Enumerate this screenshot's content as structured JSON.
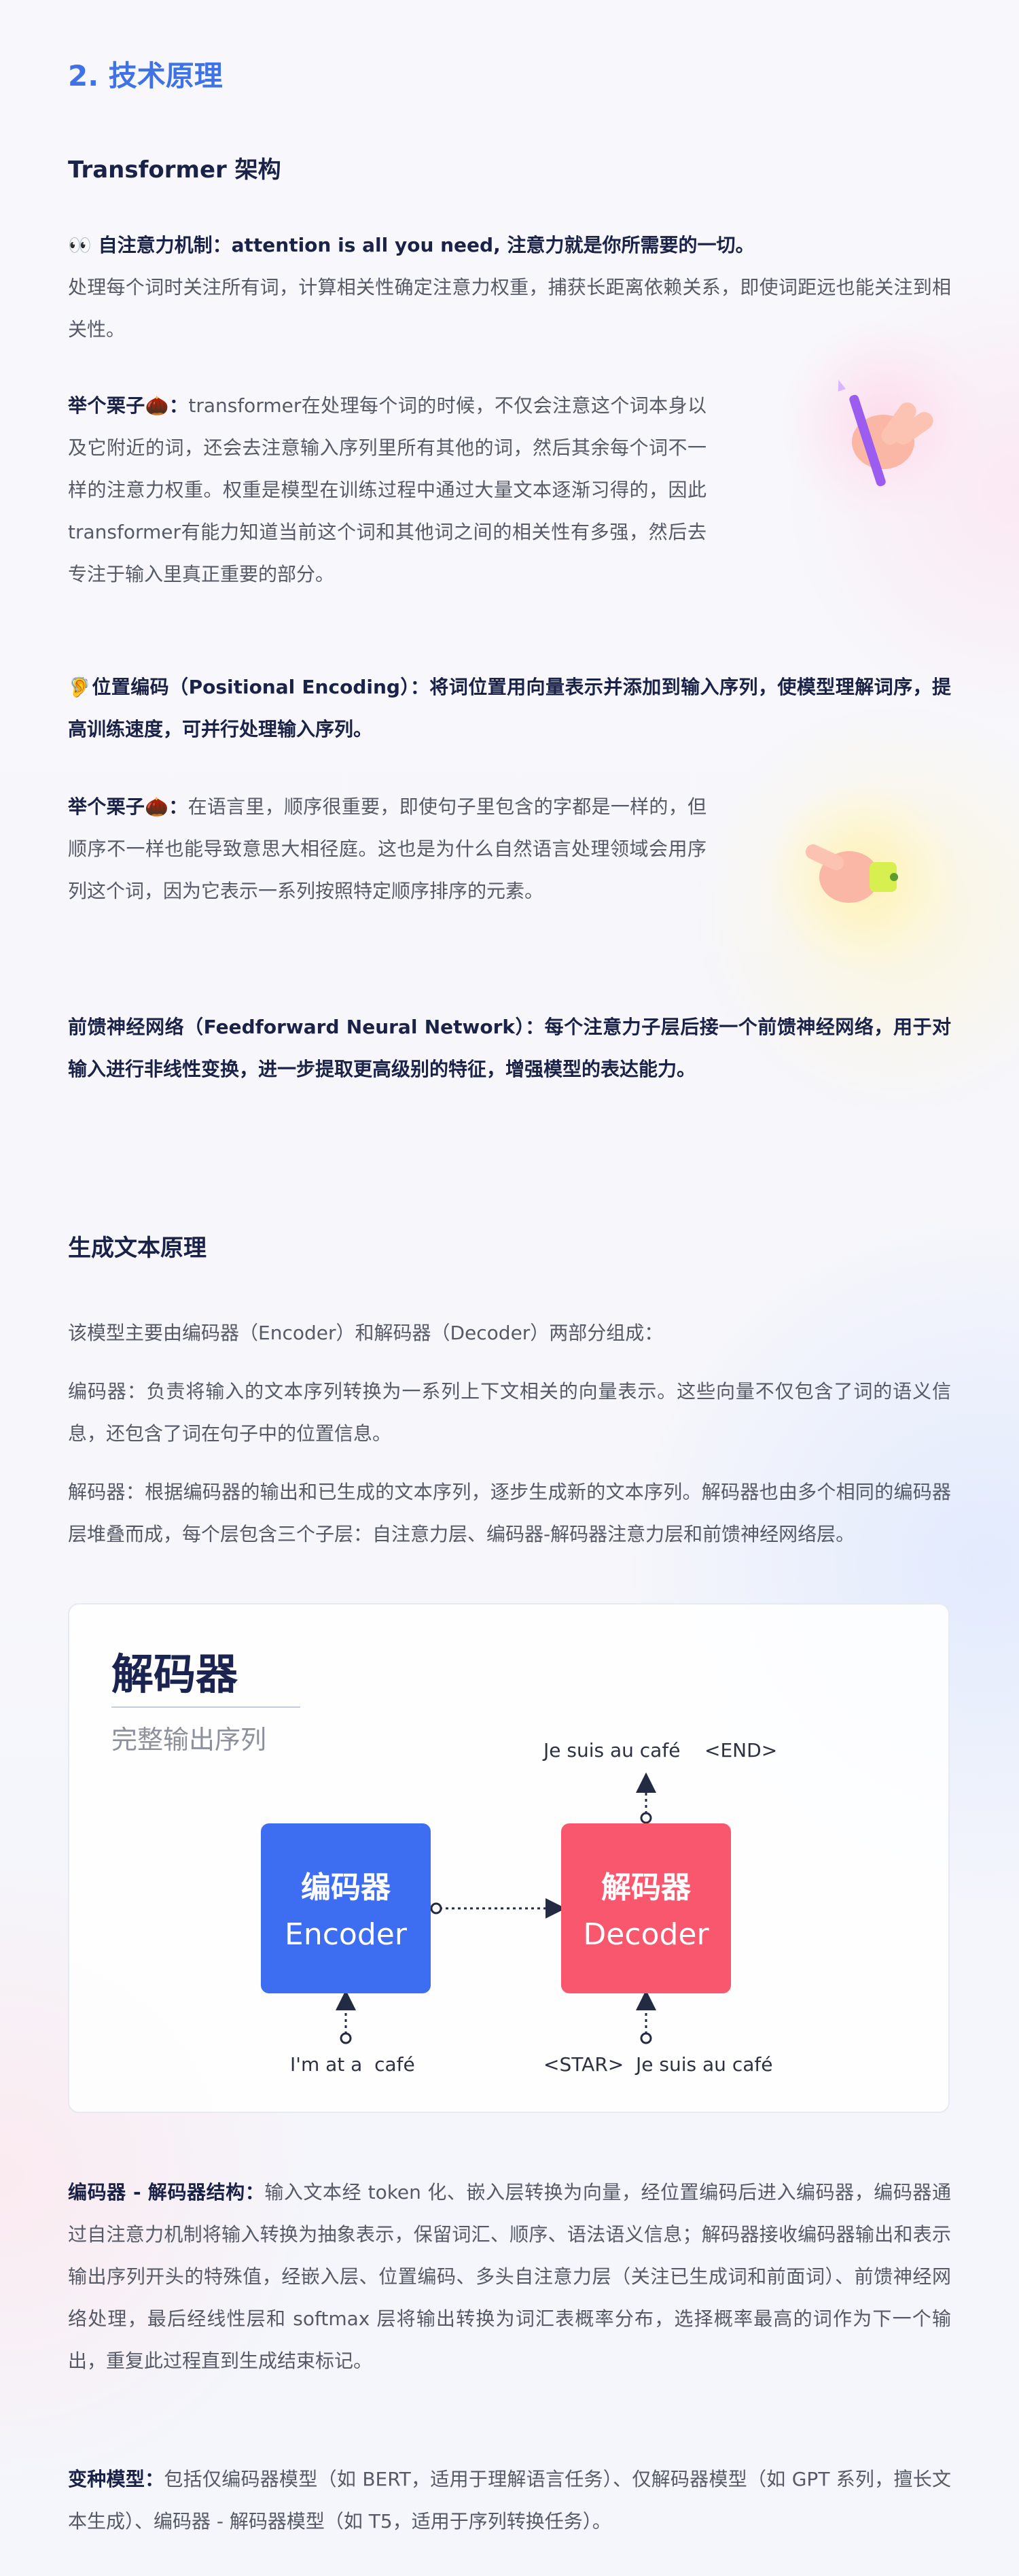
{
  "section": {
    "title": "2. 技术原理"
  },
  "transformer": {
    "heading": "Transformer 架构",
    "attention_title": "👀 自注意力机制：attention is all you need, 注意力就是你所需要的一切。",
    "attention_body": "处理每个词时关注所有词，计算相关性确定注意力权重，捕获长距离依赖关系，即使词距远也能关注到相关性。",
    "example1_label": "举个栗子🌰：",
    "example1_body": "transformer在处理每个词的时候，不仅会注意这个词本身以及它附近的词，还会去注意输入序列里所有其他的词，然后其余每个词不一样的注意力权重。权重是模型在训练过程中通过大量文本逐渐习得的，因此transformer有能力知道当前这个词和其他词之间的相关性有多强，然后去专注于输入里真正重要的部分。",
    "posenc_title": "🦻位置编码（Positional Encoding）：将词位置用向量表示并添加到输入序列，使模型理解词序，提高训练速度，可并行处理输入序列。",
    "example2_label": "举个栗子🌰：",
    "example2_body": "在语言里，顺序很重要，即使句子里包含的字都是一样的，但顺序不一样也能导致意思大相径庭。这也是为什么自然语言处理领域会用序列这个词，因为它表示一系列按照特定顺序排序的元素。",
    "ffn_title": "前馈神经网络（Feedforward Neural Network）：每个注意力子层后接一个前馈神经网络，用于对输入进行非线性变换，进一步提取更高级别的特征，增强模型的表达能力。"
  },
  "generation": {
    "heading": "生成文本原理",
    "intro": "该模型主要由编码器（Encoder）和解码器（Decoder）两部分组成：",
    "encoder_desc": "编码器：负责将输入的文本序列转换为一系列上下文相关的向量表示。这些向量不仅包含了词的语义信息，还包含了词在句子中的位置信息。",
    "decoder_desc": "解码器：根据编码器的输出和已生成的文本序列，逐步生成新的文本序列。解码器也由多个相同的编码器层堆叠而成，每个层包含三个子层：自注意力层、编码器-解码器注意力层和前馈神经网络层。"
  },
  "diagram": {
    "title": "解码器",
    "subtitle": "完整输出序列",
    "encoder_cn": "编码器",
    "encoder_en": "Encoder",
    "decoder_cn": "解码器",
    "decoder_en": "Decoder",
    "encoder_input": "I'm at a  café",
    "decoder_input": "<STAR>  Je suis au café",
    "decoder_output": "Je suis au café    <END>",
    "colors": {
      "encoder": "#3d6df0",
      "decoder": "#f9576e"
    }
  },
  "structure": {
    "label": "编码器 - 解码器结构：",
    "body": "输入文本经 token 化、嵌入层转换为向量，经位置编码后进入编码器，编码器通过自注意力机制将输入转换为抽象表示，保留词汇、顺序、语法语义信息；解码器接收编码器输出和表示输出序列开头的特殊值，经嵌入层、位置编码、多头自注意力层（关注已生成词和前面词）、前馈神经网络处理，最后经线性层和 softmax 层将输出转换为词汇表概率分布，选择概率最高的词作为下一个输出，重复此过程直到生成结束标记。"
  },
  "variants": {
    "label": "变种模型：",
    "body": "包括仅编码器模型（如 BERT，适用于理解语言任务）、仅解码器模型（如 GPT 系列，擅长文本生成）、编码器 - 解码器模型（如 T5，适用于序列转换任务）。"
  },
  "icons": {
    "hand1": "hand-holding-pen-icon",
    "hand2": "pointing-hand-icon"
  }
}
